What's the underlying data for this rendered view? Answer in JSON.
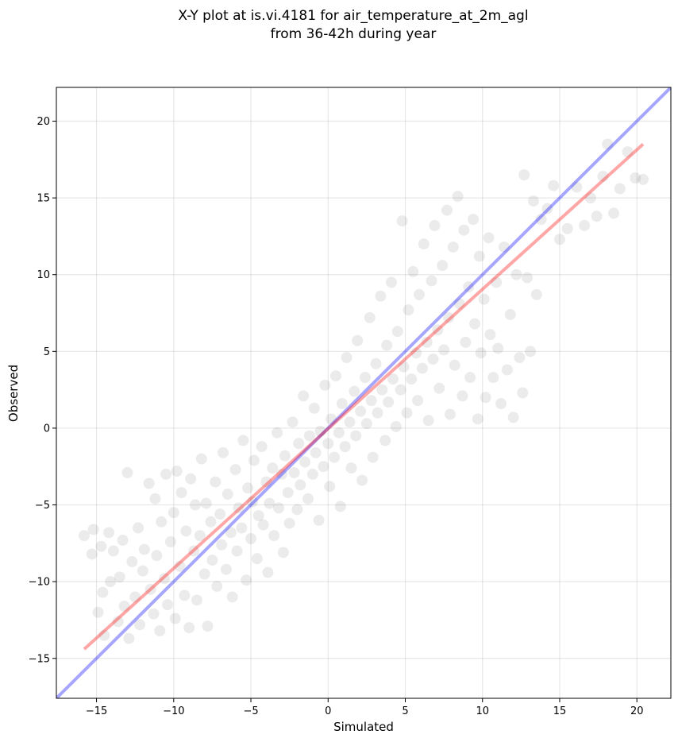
{
  "chart_data": {
    "type": "scatter",
    "title_line1": "X-Y plot at is.vi.4181 for air_temperature_at_2m_agl",
    "title_line2": "from 36-42h during year",
    "xlabel": "Simulated",
    "ylabel": "Observed",
    "xlim": [
      -17.6,
      22.2
    ],
    "ylim": [
      -17.6,
      22.2
    ],
    "xticks": [
      -15,
      -10,
      -5,
      0,
      5,
      10,
      15,
      20
    ],
    "yticks": [
      -15,
      -10,
      -5,
      0,
      5,
      10,
      15,
      20
    ],
    "xtick_labels": [
      "−15",
      "−10",
      "−5",
      "0",
      "5",
      "10",
      "15",
      "20"
    ],
    "ytick_labels": [
      "−15",
      "−10",
      "−5",
      "0",
      "5",
      "10",
      "15",
      "20"
    ],
    "grid": true,
    "point_color": "#000000",
    "point_alpha": 0.08,
    "identity_line": {
      "x": [
        -17.6,
        22.2
      ],
      "y": [
        -17.6,
        22.2
      ],
      "color": "#0000ff",
      "alpha": 0.35
    },
    "regression_line": {
      "x": [
        -15.8,
        20.4
      ],
      "y": [
        -14.4,
        18.5
      ],
      "color": "#ff0000",
      "alpha": 0.35
    },
    "points": [
      [
        -15.8,
        -7.0
      ],
      [
        -15.3,
        -8.2
      ],
      [
        -15.2,
        -6.6
      ],
      [
        -14.9,
        -12.0
      ],
      [
        -14.7,
        -7.7
      ],
      [
        -14.6,
        -10.7
      ],
      [
        -14.5,
        -13.5
      ],
      [
        -14.2,
        -6.8
      ],
      [
        -14.1,
        -10.0
      ],
      [
        -13.9,
        -8.0
      ],
      [
        -13.6,
        -12.6
      ],
      [
        -13.5,
        -9.7
      ],
      [
        -13.3,
        -7.3
      ],
      [
        -13.2,
        -11.6
      ],
      [
        -13.0,
        -2.9
      ],
      [
        -12.9,
        -13.7
      ],
      [
        -12.7,
        -8.7
      ],
      [
        -12.5,
        -11.0
      ],
      [
        -12.3,
        -6.5
      ],
      [
        -12.2,
        -12.8
      ],
      [
        -12.0,
        -9.3
      ],
      [
        -11.9,
        -7.9
      ],
      [
        -11.6,
        -3.6
      ],
      [
        -11.5,
        -10.5
      ],
      [
        -11.3,
        -12.1
      ],
      [
        -11.2,
        -4.6
      ],
      [
        -11.1,
        -8.3
      ],
      [
        -10.9,
        -13.2
      ],
      [
        -10.8,
        -6.1
      ],
      [
        -10.6,
        -9.8
      ],
      [
        -10.5,
        -3.0
      ],
      [
        -10.4,
        -11.5
      ],
      [
        -10.2,
        -7.4
      ],
      [
        -10.0,
        -5.5
      ],
      [
        -9.9,
        -12.4
      ],
      [
        -9.8,
        -2.8
      ],
      [
        -9.6,
        -9.0
      ],
      [
        -9.5,
        -4.2
      ],
      [
        -9.3,
        -10.9
      ],
      [
        -9.2,
        -6.7
      ],
      [
        -9.0,
        -13.0
      ],
      [
        -8.9,
        -3.3
      ],
      [
        -8.7,
        -8.0
      ],
      [
        -8.6,
        -5.0
      ],
      [
        -8.5,
        -11.2
      ],
      [
        -8.3,
        -7.0
      ],
      [
        -8.2,
        -2.0
      ],
      [
        -8.0,
        -9.5
      ],
      [
        -7.9,
        -4.9
      ],
      [
        -7.8,
        -12.9
      ],
      [
        -7.6,
        -6.1
      ],
      [
        -7.5,
        -8.6
      ],
      [
        -7.3,
        -3.5
      ],
      [
        -7.2,
        -10.3
      ],
      [
        -7.0,
        -5.6
      ],
      [
        -6.9,
        -7.6
      ],
      [
        -6.8,
        -1.6
      ],
      [
        -6.6,
        -9.2
      ],
      [
        -6.5,
        -4.3
      ],
      [
        -6.3,
        -6.8
      ],
      [
        -6.2,
        -11.0
      ],
      [
        -6.0,
        -2.7
      ],
      [
        -5.9,
        -8.0
      ],
      [
        -5.8,
        -5.2
      ],
      [
        -5.6,
        -6.5
      ],
      [
        -5.5,
        -0.8
      ],
      [
        -5.3,
        -9.9
      ],
      [
        -5.2,
        -3.9
      ],
      [
        -5.0,
        -7.2
      ],
      [
        -4.9,
        -4.8
      ],
      [
        -4.8,
        -2.1
      ],
      [
        -4.6,
        -8.5
      ],
      [
        -4.5,
        -5.7
      ],
      [
        -4.3,
        -1.2
      ],
      [
        -4.2,
        -6.3
      ],
      [
        -4.0,
        -3.5
      ],
      [
        -3.9,
        -9.4
      ],
      [
        -3.8,
        -4.9
      ],
      [
        -3.6,
        -2.6
      ],
      [
        -3.5,
        -7.0
      ],
      [
        -3.3,
        -0.3
      ],
      [
        -3.2,
        -5.2
      ],
      [
        -3.0,
        -3.0
      ],
      [
        -2.9,
        -8.1
      ],
      [
        -2.8,
        -1.8
      ],
      [
        -2.6,
        -4.2
      ],
      [
        -2.5,
        -6.2
      ],
      [
        -2.3,
        0.4
      ],
      [
        -2.2,
        -2.9
      ],
      [
        -2.0,
        -5.3
      ],
      [
        -1.9,
        -1.0
      ],
      [
        -1.8,
        -3.7
      ],
      [
        -1.6,
        2.1
      ],
      [
        -1.5,
        -2.2
      ],
      [
        -1.3,
        -4.6
      ],
      [
        -1.2,
        -0.5
      ],
      [
        -1.0,
        -3.0
      ],
      [
        -0.9,
        1.3
      ],
      [
        -0.8,
        -1.6
      ],
      [
        -0.6,
        -6.0
      ],
      [
        -0.5,
        -0.2
      ],
      [
        -0.3,
        -2.5
      ],
      [
        -0.2,
        2.8
      ],
      [
        0.0,
        -1.0
      ],
      [
        0.1,
        -3.8
      ],
      [
        0.2,
        0.6
      ],
      [
        0.4,
        -1.9
      ],
      [
        0.5,
        3.4
      ],
      [
        0.7,
        -0.3
      ],
      [
        0.8,
        -5.1
      ],
      [
        0.9,
        1.6
      ],
      [
        1.1,
        -1.2
      ],
      [
        1.2,
        4.6
      ],
      [
        1.4,
        0.4
      ],
      [
        1.5,
        -2.6
      ],
      [
        1.7,
        2.4
      ],
      [
        1.8,
        -0.5
      ],
      [
        1.9,
        5.7
      ],
      [
        2.1,
        1.1
      ],
      [
        2.2,
        -3.4
      ],
      [
        2.4,
        3.3
      ],
      [
        2.5,
        0.3
      ],
      [
        2.7,
        7.2
      ],
      [
        2.8,
        1.8
      ],
      [
        2.9,
        -1.9
      ],
      [
        3.1,
        4.2
      ],
      [
        3.2,
        1.0
      ],
      [
        3.4,
        8.6
      ],
      [
        3.5,
        2.5
      ],
      [
        3.7,
        -0.8
      ],
      [
        3.8,
        5.4
      ],
      [
        3.9,
        1.7
      ],
      [
        4.1,
        9.5
      ],
      [
        4.2,
        3.2
      ],
      [
        4.4,
        0.1
      ],
      [
        4.5,
        6.3
      ],
      [
        4.7,
        2.5
      ],
      [
        4.8,
        13.5
      ],
      [
        4.9,
        4.0
      ],
      [
        5.1,
        1.0
      ],
      [
        5.2,
        7.7
      ],
      [
        5.4,
        3.2
      ],
      [
        5.5,
        10.2
      ],
      [
        5.7,
        4.9
      ],
      [
        5.8,
        1.8
      ],
      [
        5.9,
        8.7
      ],
      [
        6.1,
        3.9
      ],
      [
        6.2,
        12.0
      ],
      [
        6.4,
        5.6
      ],
      [
        6.5,
        0.5
      ],
      [
        6.7,
        9.6
      ],
      [
        6.8,
        4.5
      ],
      [
        6.9,
        13.2
      ],
      [
        7.1,
        6.4
      ],
      [
        7.2,
        2.6
      ],
      [
        7.4,
        10.6
      ],
      [
        7.5,
        5.1
      ],
      [
        7.7,
        14.2
      ],
      [
        7.8,
        7.2
      ],
      [
        7.9,
        0.9
      ],
      [
        8.1,
        11.8
      ],
      [
        8.2,
        4.1
      ],
      [
        8.4,
        15.1
      ],
      [
        8.5,
        8.1
      ],
      [
        8.7,
        2.1
      ],
      [
        8.8,
        12.9
      ],
      [
        8.9,
        5.6
      ],
      [
        9.1,
        9.2
      ],
      [
        9.2,
        3.3
      ],
      [
        9.4,
        13.6
      ],
      [
        9.5,
        6.8
      ],
      [
        9.7,
        0.6
      ],
      [
        9.8,
        11.2
      ],
      [
        9.9,
        4.9
      ],
      [
        10.1,
        8.4
      ],
      [
        10.2,
        2.0
      ],
      [
        10.4,
        12.4
      ],
      [
        10.5,
        6.1
      ],
      [
        10.7,
        3.3
      ],
      [
        10.9,
        9.5
      ],
      [
        11.0,
        5.2
      ],
      [
        11.2,
        1.6
      ],
      [
        11.4,
        11.8
      ],
      [
        11.6,
        3.8
      ],
      [
        11.8,
        7.4
      ],
      [
        12.0,
        0.7
      ],
      [
        12.2,
        10.0
      ],
      [
        12.4,
        4.6
      ],
      [
        12.6,
        2.3
      ],
      [
        12.7,
        16.5
      ],
      [
        12.9,
        9.8
      ],
      [
        13.1,
        5.0
      ],
      [
        13.3,
        14.8
      ],
      [
        13.5,
        8.7
      ],
      [
        13.8,
        13.6
      ],
      [
        14.2,
        14.3
      ],
      [
        14.6,
        15.8
      ],
      [
        15.0,
        12.3
      ],
      [
        15.5,
        13.0
      ],
      [
        16.1,
        15.7
      ],
      [
        16.6,
        13.2
      ],
      [
        17.0,
        15.0
      ],
      [
        17.4,
        13.8
      ],
      [
        17.8,
        16.4
      ],
      [
        18.1,
        18.5
      ],
      [
        18.5,
        14.0
      ],
      [
        18.9,
        15.6
      ],
      [
        19.4,
        18.0
      ],
      [
        19.9,
        16.3
      ],
      [
        20.4,
        16.2
      ]
    ]
  }
}
